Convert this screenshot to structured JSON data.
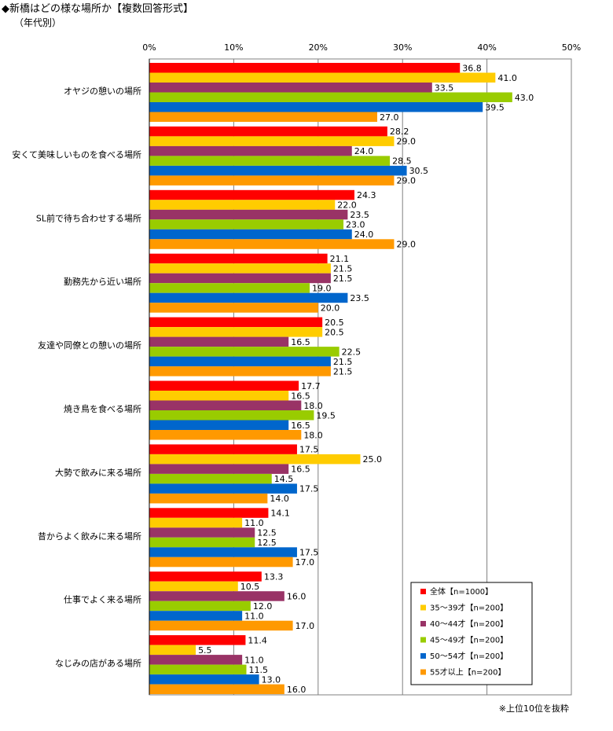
{
  "title": "◆新橋はどの様な場所か【複数回答形式】",
  "subtitle": "（年代別）",
  "footnote": "※上位10位を抜粋",
  "chart_data": {
    "type": "bar",
    "orientation": "horizontal",
    "title": "◆新橋はどの様な場所か【複数回答形式】",
    "subtitle": "（年代別）",
    "xlim": [
      0,
      50
    ],
    "xticks": [
      0,
      10,
      20,
      30,
      40,
      50
    ],
    "xtick_labels": [
      "0%",
      "10%",
      "20%",
      "30%",
      "40%",
      "50%"
    ],
    "grid": true,
    "legend_position": "bottom-right",
    "categories": [
      "オヤジの憩いの場所",
      "安くて美味しいものを食べる場所",
      "SL前で待ち合わせする場所",
      "勤務先から近い場所",
      "友達や同僚との憩いの場所",
      "焼き鳥を食べる場所",
      "大勢で飲みに来る場所",
      "昔からよく飲みに来る場所",
      "仕事でよく来る場所",
      "なじみの店がある場所"
    ],
    "series": [
      {
        "name": "全体【n=1000】",
        "color": "#ff0000",
        "values": [
          36.8,
          28.2,
          24.3,
          21.1,
          20.5,
          17.7,
          17.5,
          14.1,
          13.3,
          11.4
        ]
      },
      {
        "name": "35～39才【n=200】",
        "color": "#ffcc00",
        "values": [
          41.0,
          29.0,
          22.0,
          21.5,
          20.5,
          16.5,
          25.0,
          11.0,
          10.5,
          5.5
        ]
      },
      {
        "name": "40～44才【n=200】",
        "color": "#993366",
        "values": [
          33.5,
          24.0,
          23.5,
          21.5,
          16.5,
          18.0,
          16.5,
          12.5,
          16.0,
          11.0
        ]
      },
      {
        "name": "45～49才【n=200】",
        "color": "#99cc00",
        "values": [
          43.0,
          28.5,
          23.0,
          19.0,
          22.5,
          19.5,
          14.5,
          12.5,
          12.0,
          11.5
        ]
      },
      {
        "name": "50～54才【n=200】",
        "color": "#0066cc",
        "values": [
          39.5,
          30.5,
          24.0,
          23.5,
          21.5,
          16.5,
          17.5,
          17.5,
          11.0,
          13.0
        ]
      },
      {
        "name": "55才以上【n=200】",
        "color": "#ff9900",
        "values": [
          27.0,
          29.0,
          29.0,
          20.0,
          21.5,
          18.0,
          14.0,
          17.0,
          17.0,
          16.0
        ]
      }
    ]
  }
}
